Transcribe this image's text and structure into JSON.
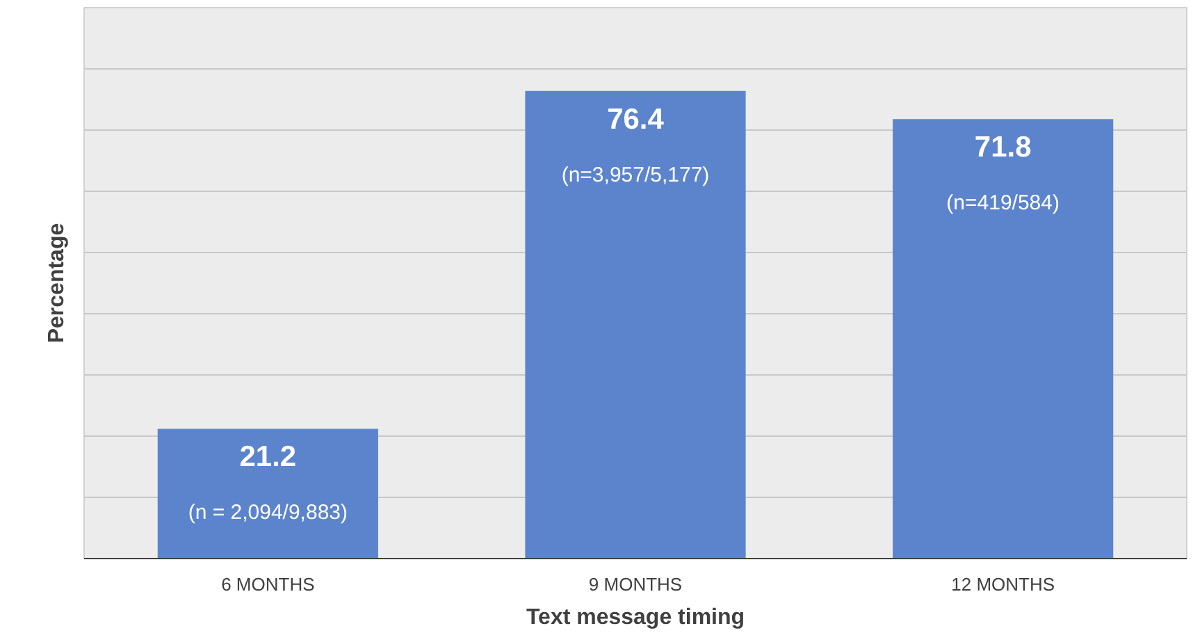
{
  "chart_data": {
    "type": "bar",
    "xlabel": "Text message timing",
    "ylabel": "Percentage",
    "categories": [
      "6 MONTHS",
      "9 MONTHS",
      "12 MONTHS"
    ],
    "values": [
      21.2,
      76.4,
      71.8
    ],
    "color": "#5b84cc",
    "data_labels": true,
    "ylim": [
      0,
      90
    ],
    "yticks": [
      {
        "value": 0,
        "label": null
      },
      {
        "value": 10,
        "label": null
      },
      {
        "value": 20,
        "label": null
      },
      {
        "value": 30,
        "label": null
      },
      {
        "value": 40,
        "label": null
      },
      {
        "value": 50,
        "label": null
      },
      {
        "value": 60,
        "label": null
      },
      {
        "value": 70,
        "label": null
      },
      {
        "value": 80,
        "label": null
      },
      {
        "value": 90,
        "label": null
      }
    ],
    "tick_labels": "x",
    "grid": "y",
    "annotations": [
      "(n = 2,094/9,883)",
      "(n=3,957/5,177)",
      "(n=419/584)"
    ]
  }
}
